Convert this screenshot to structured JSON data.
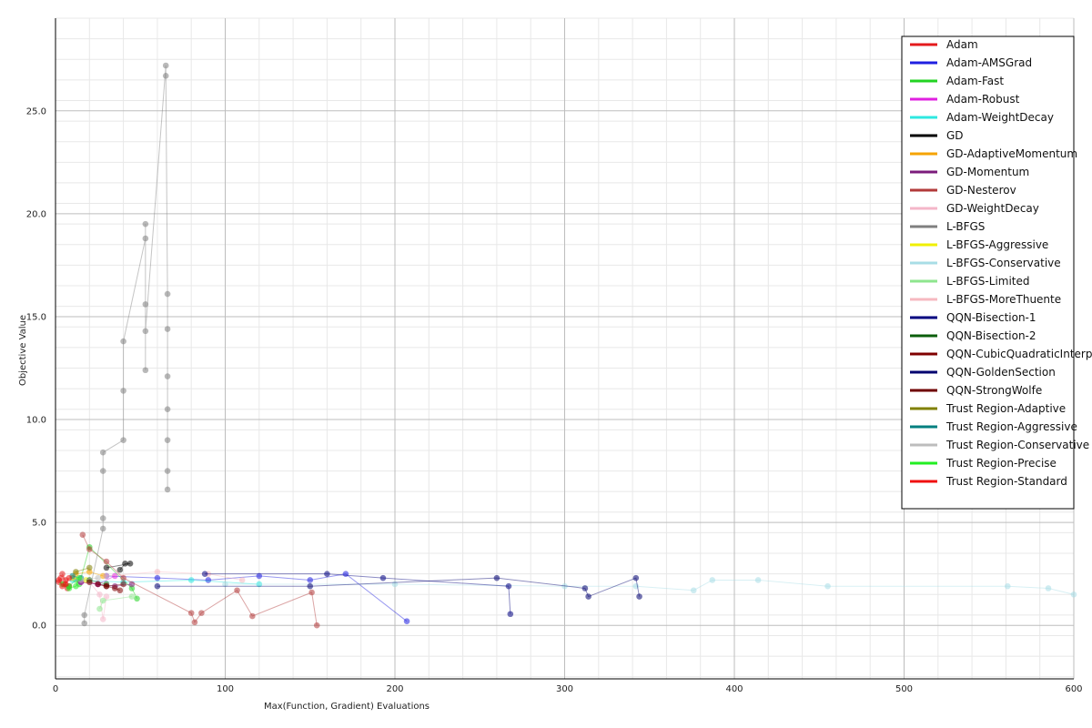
{
  "chart_data": {
    "type": "scatter",
    "title": "",
    "xlabel": "Max(Function, Gradient) Evaluations",
    "ylabel": "Objective Value",
    "xlim": [
      0,
      600
    ],
    "ylim": [
      -2.6,
      29.5
    ],
    "x_ticks": [
      0,
      100,
      200,
      300,
      400,
      500,
      600
    ],
    "y_ticks": [
      0.0,
      5.0,
      10.0,
      15.0,
      20.0,
      25.0
    ],
    "y_tick_labels": [
      "0.0",
      "5.0",
      "10.0",
      "15.0",
      "20.0",
      "25.0"
    ],
    "grid": true,
    "minor_grid": true,
    "legend_position": "top-right",
    "series": [
      {
        "name": "Adam",
        "color": "#e41a1c",
        "points": [
          [
            3,
            2.3
          ],
          [
            5,
            2.0
          ],
          [
            7,
            1.8
          ],
          [
            4,
            2.5
          ],
          [
            6,
            2.2
          ],
          [
            8,
            1.9
          ],
          [
            2,
            2.1
          ]
        ]
      },
      {
        "name": "Adam-AMSGrad",
        "color": "#1f1fe0",
        "points": [
          [
            30,
            2.4
          ],
          [
            60,
            2.3
          ],
          [
            90,
            2.2
          ],
          [
            120,
            2.4
          ],
          [
            150,
            2.2
          ],
          [
            171,
            2.5
          ],
          [
            207,
            0.2
          ]
        ]
      },
      {
        "name": "Adam-Fast",
        "color": "#22d322",
        "points": [
          [
            8,
            1.9
          ],
          [
            12,
            2.2
          ],
          [
            14,
            2.0
          ],
          [
            20,
            3.8
          ],
          [
            45,
            1.8
          ],
          [
            48,
            1.3
          ]
        ]
      },
      {
        "name": "Adam-Robust",
        "color": "#e020e0",
        "points": [
          [
            10,
            2.3
          ],
          [
            15,
            2.1
          ],
          [
            25,
            2.0
          ],
          [
            35,
            2.4
          ]
        ]
      },
      {
        "name": "Adam-WeightDecay",
        "color": "#2ee8e0",
        "points": [
          [
            10,
            2.2
          ],
          [
            40,
            2.1
          ],
          [
            80,
            2.2
          ],
          [
            120,
            2.0
          ]
        ]
      },
      {
        "name": "GD",
        "color": "#000000",
        "points": [
          [
            38,
            2.7
          ],
          [
            41,
            3.0
          ],
          [
            44,
            3.0
          ],
          [
            30,
            2.8
          ]
        ]
      },
      {
        "name": "GD-AdaptiveMomentum",
        "color": "#f5a300",
        "points": [
          [
            12,
            2.5
          ],
          [
            20,
            2.6
          ],
          [
            28,
            2.4
          ]
        ]
      },
      {
        "name": "GD-Momentum",
        "color": "#7b1c7b",
        "points": [
          [
            15,
            2.1
          ],
          [
            25,
            2.0
          ],
          [
            35,
            1.9
          ],
          [
            45,
            2.0
          ]
        ]
      },
      {
        "name": "GD-Nesterov",
        "color": "#b23a3a",
        "points": [
          [
            16,
            4.4
          ],
          [
            20,
            3.7
          ],
          [
            30,
            3.1
          ],
          [
            40,
            2.3
          ],
          [
            80,
            0.6
          ],
          [
            82,
            0.15
          ],
          [
            86,
            0.6
          ],
          [
            107,
            1.7
          ],
          [
            116,
            0.45
          ],
          [
            151,
            1.6
          ],
          [
            154,
            0.0
          ]
        ]
      },
      {
        "name": "GD-WeightDecay",
        "color": "#f4b6c8",
        "points": [
          [
            20,
            2.1
          ],
          [
            26,
            1.5
          ],
          [
            28,
            0.3
          ],
          [
            30,
            1.4
          ]
        ]
      },
      {
        "name": "L-BFGS",
        "color": "#7f7f7f",
        "points": [
          [
            17,
            0.1
          ],
          [
            17,
            0.5
          ],
          [
            28,
            4.7
          ],
          [
            28,
            5.2
          ],
          [
            28,
            7.5
          ],
          [
            28,
            8.4
          ],
          [
            40,
            9.0
          ],
          [
            40,
            11.4
          ],
          [
            40,
            13.8
          ],
          [
            53,
            18.8
          ],
          [
            53,
            19.5
          ],
          [
            53,
            12.4
          ],
          [
            53,
            15.6
          ],
          [
            53,
            14.3
          ],
          [
            65,
            27.2
          ],
          [
            65,
            26.7
          ],
          [
            66,
            16.1
          ],
          [
            66,
            14.4
          ],
          [
            66,
            12.1
          ],
          [
            66,
            10.5
          ],
          [
            66,
            9.0
          ],
          [
            66,
            7.5
          ],
          [
            66,
            6.6
          ]
        ]
      },
      {
        "name": "L-BFGS-Aggressive",
        "color": "#f0f000",
        "points": [
          [
            10,
            2.3
          ],
          [
            18,
            2.2
          ]
        ]
      },
      {
        "name": "L-BFGS-Conservative",
        "color": "#a8dde6",
        "points": [
          [
            100,
            2.0
          ],
          [
            200,
            2.0
          ],
          [
            300,
            1.9
          ],
          [
            342,
            1.9
          ],
          [
            376,
            1.7
          ],
          [
            387,
            2.2
          ],
          [
            414,
            2.2
          ],
          [
            455,
            1.9
          ],
          [
            561,
            1.9
          ],
          [
            585,
            1.8
          ],
          [
            600,
            1.5
          ]
        ]
      },
      {
        "name": "L-BFGS-Limited",
        "color": "#8ee68e",
        "points": [
          [
            26,
            0.8
          ],
          [
            28,
            1.2
          ],
          [
            45,
            1.4
          ]
        ]
      },
      {
        "name": "L-BFGS-MoreThuente",
        "color": "#f6b8c0",
        "points": [
          [
            30,
            2.4
          ],
          [
            60,
            2.6
          ],
          [
            90,
            2.5
          ],
          [
            110,
            2.2
          ]
        ]
      },
      {
        "name": "QQN-Bisection-1",
        "color": "#00007f",
        "points": [
          [
            88,
            2.5
          ],
          [
            160,
            2.5
          ],
          [
            193,
            2.3
          ],
          [
            267,
            1.9
          ],
          [
            268,
            0.55
          ]
        ]
      },
      {
        "name": "QQN-Bisection-2",
        "color": "#0b5e0b",
        "points": [
          [
            20,
            2.2
          ],
          [
            30,
            2.0
          ]
        ]
      },
      {
        "name": "QQN-CubicQuadraticInterpolation",
        "color": "#7f0000",
        "points": [
          [
            25,
            2.0
          ],
          [
            30,
            1.9
          ],
          [
            35,
            1.8
          ],
          [
            38,
            1.7
          ]
        ]
      },
      {
        "name": "QQN-GoldenSection",
        "color": "#00006f",
        "points": [
          [
            60,
            1.9
          ],
          [
            150,
            1.9
          ],
          [
            260,
            2.3
          ],
          [
            312,
            1.8
          ],
          [
            314,
            1.4
          ],
          [
            342,
            2.3
          ],
          [
            344,
            1.4
          ]
        ]
      },
      {
        "name": "QQN-StrongWolfe",
        "color": "#6f0000",
        "points": [
          [
            20,
            2.1
          ],
          [
            30,
            1.9
          ],
          [
            40,
            2.0
          ]
        ]
      },
      {
        "name": "Trust Region-Adaptive",
        "color": "#808000",
        "points": [
          [
            12,
            2.6
          ],
          [
            20,
            2.8
          ]
        ]
      },
      {
        "name": "Trust Region-Aggressive",
        "color": "#007f7f",
        "points": [
          [
            10,
            2.4
          ],
          [
            15,
            2.3
          ]
        ]
      },
      {
        "name": "Trust Region-Conservative",
        "color": "#bdbdbd",
        "points": [
          [
            15,
            2.2
          ],
          [
            25,
            2.3
          ]
        ]
      },
      {
        "name": "Trust Region-Precise",
        "color": "#22ee22",
        "points": [
          [
            4,
            2.0
          ],
          [
            8,
            1.8
          ],
          [
            12,
            1.9
          ],
          [
            14,
            2.3
          ]
        ]
      },
      {
        "name": "Trust Region-Standard",
        "color": "#f01010",
        "points": [
          [
            2,
            2.2
          ],
          [
            4,
            1.9
          ],
          [
            6,
            2.0
          ],
          [
            8,
            2.3
          ]
        ]
      }
    ]
  }
}
